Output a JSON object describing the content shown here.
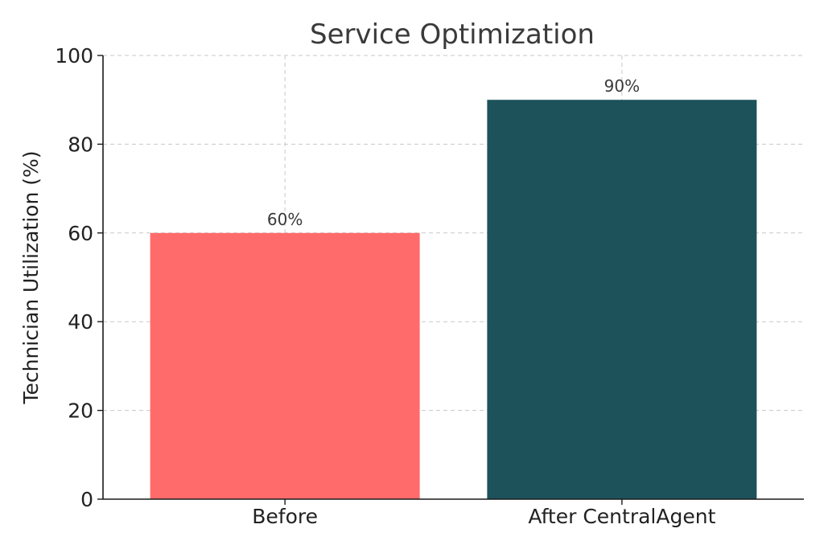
{
  "chart_data": {
    "type": "bar",
    "title": "Service Optimization",
    "xlabel": "",
    "ylabel": "Technician Utilization (%)",
    "categories": [
      "Before",
      "After CentralAgent"
    ],
    "values": [
      60,
      90
    ],
    "data_labels": [
      "60%",
      "90%"
    ],
    "colors": [
      "#ff6b6b",
      "#1d525b"
    ],
    "ylim": [
      0,
      100
    ],
    "yticks": [
      0,
      20,
      40,
      60,
      80,
      100
    ],
    "grid": true
  }
}
